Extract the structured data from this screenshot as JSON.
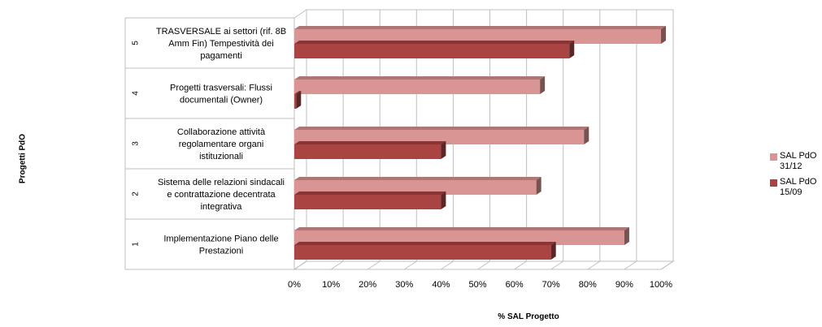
{
  "chart_data": {
    "type": "bar",
    "orientation": "horizontal",
    "categories": [
      {
        "index": "1",
        "label": "Implementazione Piano delle Prestazioni"
      },
      {
        "index": "2",
        "label": "Sistema delle relazioni sindacali e contrattazione decentrata integrativa"
      },
      {
        "index": "3",
        "label": "Collaborazione attività regolamentare organi istituzionali"
      },
      {
        "index": "4",
        "label": "Progetti trasversali: Flussi documentali (Owner)"
      },
      {
        "index": "5",
        "label": "TRASVERSALE ai settori (rif. 8B Amm Fin) Tempestività dei pagamenti"
      }
    ],
    "series": [
      {
        "name": "SAL PdO 31/12",
        "color": "#d99594",
        "values": [
          90,
          66,
          79,
          67,
          100
        ]
      },
      {
        "name": "SAL PdO 15/09",
        "color": "#a94442",
        "values": [
          70,
          40,
          40,
          0.5,
          75
        ]
      }
    ],
    "xlabel": "% SAL Progetto",
    "ylabel": "Progetti PdO",
    "xlim": [
      0,
      100
    ],
    "xticks": [
      "0%",
      "10%",
      "20%",
      "30%",
      "40%",
      "50%",
      "60%",
      "70%",
      "80%",
      "90%",
      "100%"
    ],
    "grid": true,
    "legend": "right"
  }
}
